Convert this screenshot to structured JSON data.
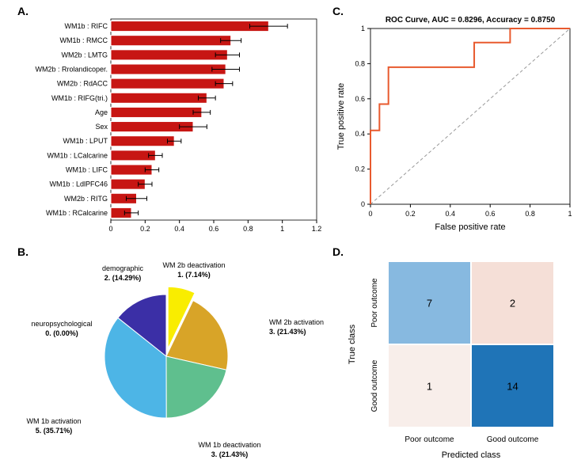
{
  "panelA": {
    "label": "A.",
    "type": "bar",
    "categories": [
      "WM1b : RIFC",
      "WM1b : RMCC",
      "WM2b : LMTG",
      "WM2b : Rrolandicoper.",
      "WM2b : RdACC",
      "WM1b : RIFG(tri.)",
      "Age",
      "Sex",
      "WM1b : LPUT",
      "WM1b : LCalcarine",
      "WM1b : LIFC",
      "WM1b : LdlPFC46",
      "WM2b : RITG",
      "WM1b : RCalcarine"
    ],
    "values": [
      0.92,
      0.7,
      0.68,
      0.67,
      0.66,
      0.56,
      0.53,
      0.48,
      0.37,
      0.26,
      0.24,
      0.2,
      0.15,
      0.12
    ],
    "errors": [
      0.11,
      0.06,
      0.07,
      0.08,
      0.05,
      0.05,
      0.05,
      0.08,
      0.04,
      0.04,
      0.04,
      0.04,
      0.06,
      0.04
    ],
    "bar_fill": "#c71613",
    "bar_edge": "#ffffff",
    "error_color": "#000000",
    "xlim": [
      0,
      1.2
    ],
    "xticks": [
      0,
      0.2,
      0.4,
      0.6,
      0.8,
      1,
      1.2
    ],
    "label_fontsize": 9,
    "tick_fontsize": 9
  },
  "panelB": {
    "label": "B.",
    "type": "pie",
    "slices": [
      {
        "name": "WM 2b deactivation",
        "count": 1,
        "pct": "7.14%",
        "color": "#f9ed00",
        "start": 90,
        "sweep": 25.7
      },
      {
        "name": "WM 2b activation",
        "count": 3,
        "pct": "21.43%",
        "color": "#d8a428",
        "start": 64.3,
        "sweep": 77.1
      },
      {
        "name": "WM 1b deactivation",
        "count": 3,
        "pct": "21.43%",
        "color": "#5fbf8e",
        "start": -12.8,
        "sweep": 77.1
      },
      {
        "name": "WM 1b activation",
        "count": 5,
        "pct": "35.71%",
        "color": "#4db5e6",
        "start": -89.9,
        "sweep": 128.6
      },
      {
        "name": "neuropsychological",
        "count": 0,
        "pct": "0.00%",
        "color": "#888888",
        "start": 141.5,
        "sweep": 0
      },
      {
        "name": "demographic",
        "count": 2,
        "pct": "14.29%",
        "color": "#3b2fa6",
        "start": 141.5,
        "sweep": 51.5
      }
    ],
    "radius": 78,
    "explode": [
      true,
      false,
      false,
      false,
      false,
      false
    ],
    "label_fontsize": 9
  },
  "panelC": {
    "label": "C.",
    "type": "line",
    "title": "ROC Curve, AUC = 0.8296, Accuracy = 0.8750",
    "xlabel": "False positive rate",
    "ylabel": "True positive rate",
    "line_color": "#e85a2e",
    "line_width": 2,
    "diag_color": "#999999",
    "roc_points": [
      [
        0,
        0
      ],
      [
        0,
        0.42
      ],
      [
        0.045,
        0.42
      ],
      [
        0.045,
        0.57
      ],
      [
        0.09,
        0.57
      ],
      [
        0.09,
        0.78
      ],
      [
        0.52,
        0.78
      ],
      [
        0.52,
        0.92
      ],
      [
        0.7,
        0.92
      ],
      [
        0.7,
        1
      ],
      [
        1,
        1
      ]
    ],
    "xlim": [
      0,
      1
    ],
    "ylim": [
      0,
      1
    ],
    "xticks": [
      0,
      0.2,
      0.4,
      0.6,
      0.8,
      1
    ],
    "yticks": [
      0,
      0.2,
      0.4,
      0.6,
      0.8,
      1
    ],
    "title_fontsize": 10,
    "label_fontsize": 11,
    "tick_fontsize": 9
  },
  "panelD": {
    "label": "D.",
    "type": "heatmap",
    "xlabel": "Predicted class",
    "ylabel": "True class",
    "x_classes": [
      "Poor outcome",
      "Good outcome"
    ],
    "y_classes": [
      "Poor outcome",
      "Good outcome"
    ],
    "rows": [
      [
        7,
        2
      ],
      [
        1,
        14
      ]
    ],
    "cell_colors": [
      [
        "#87b9e0",
        "#f5dfd7"
      ],
      [
        "#f8eeea",
        "#1f74b7"
      ]
    ],
    "text_colors": [
      [
        "#000000",
        "#000000"
      ],
      [
        "#000000",
        "#000000"
      ]
    ],
    "label_fontsize": 11,
    "class_fontsize": 10,
    "value_fontsize": 13
  }
}
